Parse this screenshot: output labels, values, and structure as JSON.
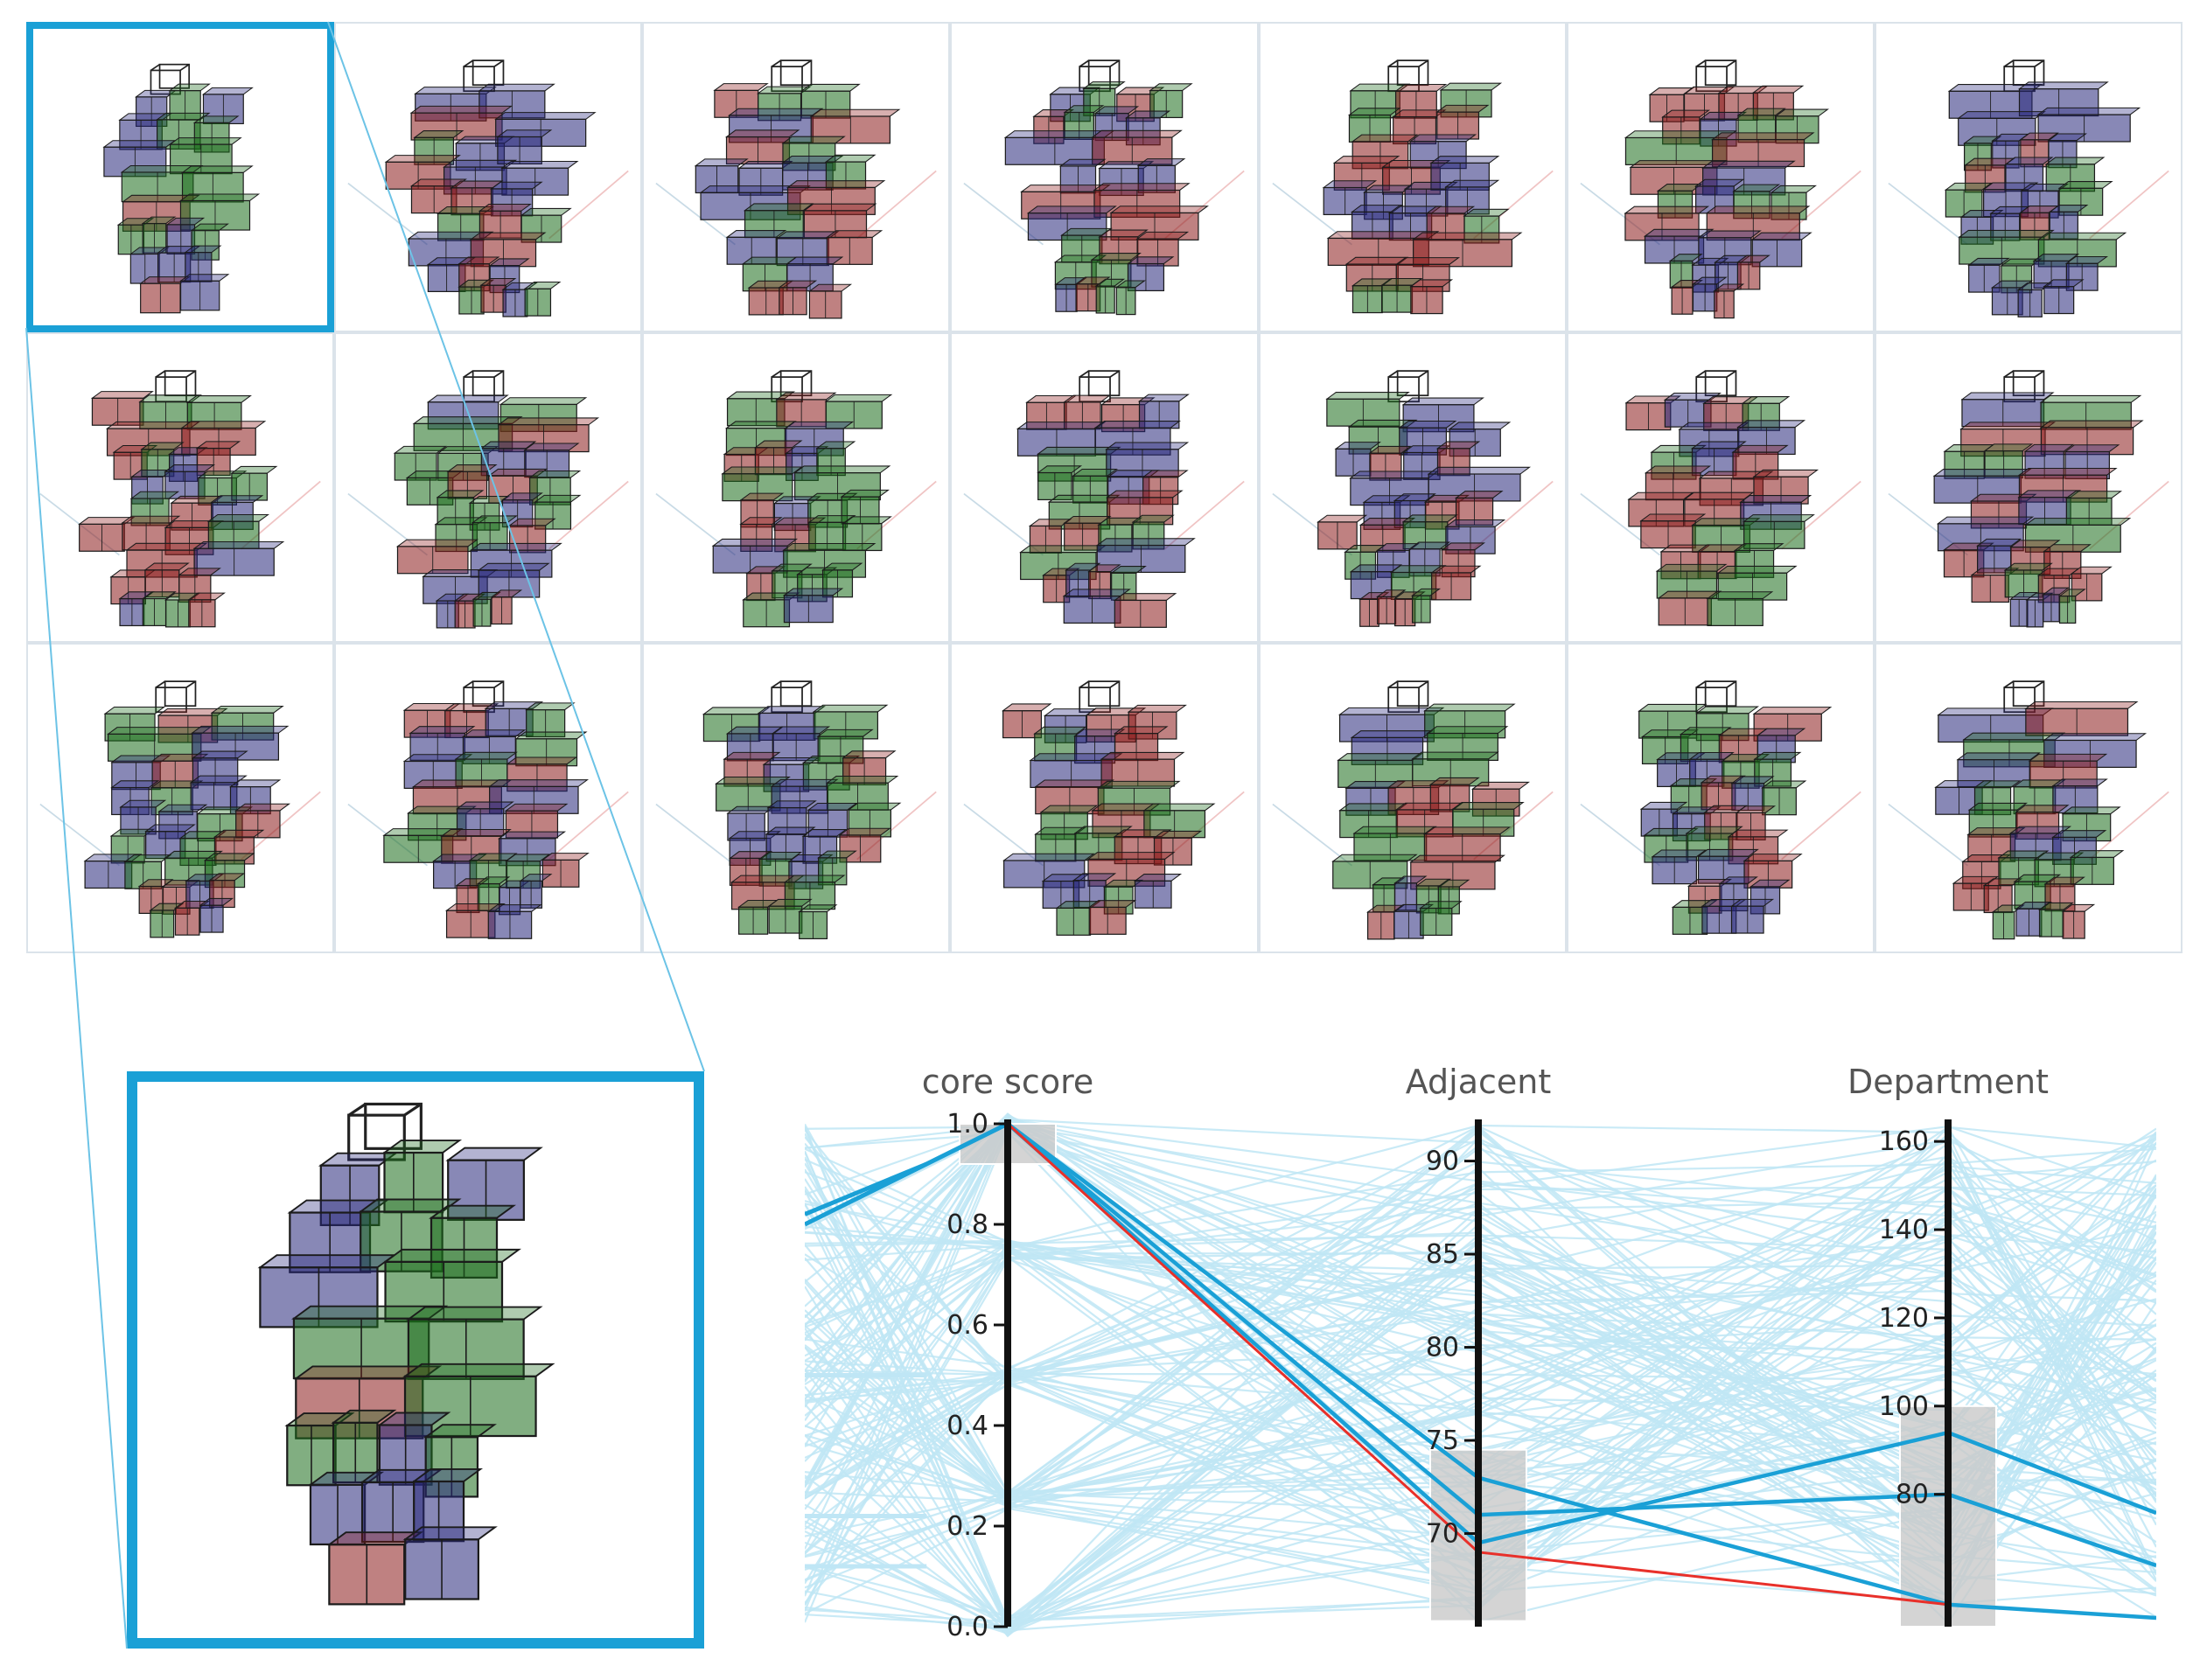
{
  "colors": {
    "accent": "#1aa0d6",
    "context_line": "#bfe6f5",
    "selected_line": "#1aa0d6",
    "highlight_line": "#e8302a",
    "brush": "#c9c9c9",
    "axis": "#111111",
    "red_block": "#8b1a1a",
    "green_block": "#1a6b1a",
    "blue_block": "#26267a"
  },
  "gallery": {
    "rows": 3,
    "cols": 7,
    "selected_index": 0,
    "item_label": "building-option"
  },
  "chart_data": {
    "type": "parallel-coordinates",
    "axes": [
      {
        "name": "core score",
        "range": [
          0,
          1.0
        ],
        "ticks": [
          "0.0",
          "0.2",
          "0.4",
          "0.6",
          "0.8",
          "1.0"
        ],
        "tick_values": [
          0,
          0.2,
          0.4,
          0.6,
          0.8,
          1.0
        ],
        "brush": [
          0.92,
          1.0
        ]
      },
      {
        "name": "Adjacent",
        "range": [
          65,
          92
        ],
        "ticks": [
          "70",
          "75",
          "80",
          "85",
          "90"
        ],
        "tick_values": [
          70,
          75,
          80,
          85,
          90
        ],
        "brush": [
          65.3,
          74.5
        ]
      },
      {
        "name": "Department",
        "range": [
          50,
          164
        ],
        "ticks": [
          "80",
          "100",
          "120",
          "140",
          "160"
        ],
        "tick_values": [
          80,
          100,
          120,
          140,
          160
        ],
        "brush": [
          50,
          100
        ]
      }
    ],
    "highlight": {
      "values": [
        1.0,
        69.0,
        55.0
      ]
    },
    "selected": [
      {
        "values": [
          1.0,
          73.0,
          55.0
        ]
      },
      {
        "values": [
          1.0,
          71.0,
          80.0
        ]
      },
      {
        "values": [
          1.0,
          69.5,
          94.0
        ]
      }
    ]
  }
}
